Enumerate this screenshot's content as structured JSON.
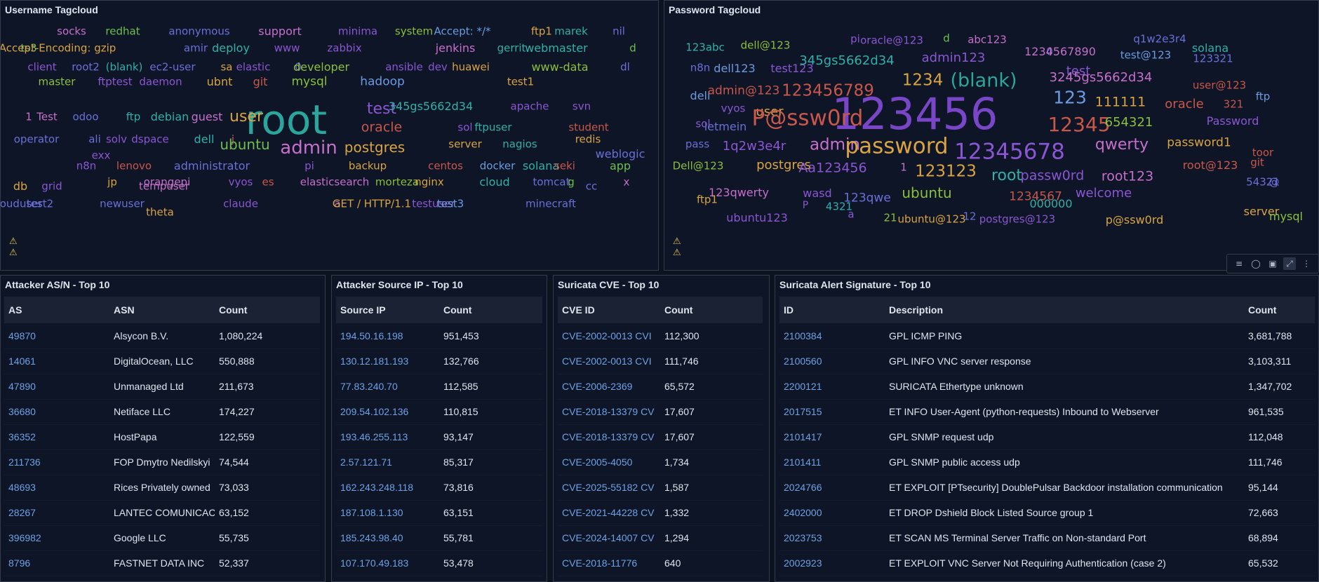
{
  "username_panel": {
    "title": "Username Tagcloud",
    "tags": [
      {
        "t": "socks",
        "c": "#c66fcb",
        "s": 15
      },
      {
        "t": "redhat",
        "c": "#6cbf4f",
        "s": 15
      },
      {
        "t": "anonymous",
        "c": "#6b6fd8",
        "s": 15
      },
      {
        "t": "support",
        "c": "#c66fcb",
        "s": 16
      },
      {
        "t": "minima",
        "c": "#8b56d3",
        "s": 15
      },
      {
        "t": "system",
        "c": "#8bbf3c",
        "s": 15
      },
      {
        "t": "Accept: */*",
        "c": "#6b9be0",
        "s": 15
      },
      {
        "t": "ftp1",
        "c": "#d9a441",
        "s": 15
      },
      {
        "t": "marek",
        "c": "#2fb0a8",
        "s": 15
      },
      {
        "t": "nil",
        "c": "#6b6fd8",
        "s": 15
      },
      {
        "t": "ts3",
        "c": "#6cbf4f",
        "s": 15
      },
      {
        "t": "Accept-Encoding: gzip",
        "c": "#d9a441",
        "s": 15
      },
      {
        "t": "amir",
        "c": "#6b6fd8",
        "s": 15
      },
      {
        "t": "deploy",
        "c": "#2fb0a8",
        "s": 16
      },
      {
        "t": "www",
        "c": "#8b56d3",
        "s": 15
      },
      {
        "t": "zabbix",
        "c": "#8b56d3",
        "s": 15
      },
      {
        "t": "jenkins",
        "c": "#c66fcb",
        "s": 16
      },
      {
        "t": "gerrit",
        "c": "#2fb0a8",
        "s": 15
      },
      {
        "t": "webmaster",
        "c": "#2fb0a8",
        "s": 16
      },
      {
        "t": "d",
        "c": "#6cbf4f",
        "s": 15
      },
      {
        "t": "client",
        "c": "#8b56d3",
        "s": 15
      },
      {
        "t": "root2",
        "c": "#6b6fd8",
        "s": 15
      },
      {
        "t": "(blank)",
        "c": "#2fb0a8",
        "s": 15
      },
      {
        "t": "ec2-user",
        "c": "#6b6fd8",
        "s": 15
      },
      {
        "t": "sa",
        "c": "#d9a441",
        "s": 15
      },
      {
        "t": "elastic",
        "c": "#8b56d3",
        "s": 15
      },
      {
        "t": "0",
        "c": "#6b6fd8",
        "s": 15
      },
      {
        "t": "developer",
        "c": "#8bbf3c",
        "s": 16
      },
      {
        "t": "ansible",
        "c": "#8b56d3",
        "s": 15
      },
      {
        "t": "dev",
        "c": "#8b56d3",
        "s": 15
      },
      {
        "t": "huawei",
        "c": "#d9a441",
        "s": 15
      },
      {
        "t": "www-data",
        "c": "#8bbf3c",
        "s": 16
      },
      {
        "t": "dl",
        "c": "#6b6fd8",
        "s": 15
      },
      {
        "t": "master",
        "c": "#8bbf3c",
        "s": 15
      },
      {
        "t": "ftptest",
        "c": "#8b56d3",
        "s": 15
      },
      {
        "t": "daemon",
        "c": "#8b56d3",
        "s": 15
      },
      {
        "t": "ubnt",
        "c": "#d9a441",
        "s": 16
      },
      {
        "t": "git",
        "c": "#c9574a",
        "s": 16
      },
      {
        "t": "mysql",
        "c": "#8bbf3c",
        "s": 17
      },
      {
        "t": "hadoop",
        "c": "#6b9be0",
        "s": 17
      },
      {
        "t": "test1",
        "c": "#d9a441",
        "s": 15
      },
      {
        "t": "root",
        "c": "#2ba69d",
        "s": 58
      },
      {
        "t": "test",
        "c": "#8b56d3",
        "s": 22
      },
      {
        "t": "345gs5662d34",
        "c": "#2fb0a8",
        "s": 16
      },
      {
        "t": "apache",
        "c": "#8b56d3",
        "s": 15
      },
      {
        "t": "svn",
        "c": "#8b56d3",
        "s": 15
      },
      {
        "t": "1",
        "c": "#c66fcb",
        "s": 15
      },
      {
        "t": "Test",
        "c": "#c66fcb",
        "s": 15
      },
      {
        "t": "odoo",
        "c": "#6b6fd8",
        "s": 15
      },
      {
        "t": "ftp",
        "c": "#2fb0a8",
        "s": 15
      },
      {
        "t": "debian",
        "c": "#2fb0a8",
        "s": 16
      },
      {
        "t": "guest",
        "c": "#c66fcb",
        "s": 16
      },
      {
        "t": "user",
        "c": "#d9a441",
        "s": 22
      },
      {
        "t": "oracle",
        "c": "#c9574a",
        "s": 19
      },
      {
        "t": "sol",
        "c": "#8b56d3",
        "s": 15
      },
      {
        "t": "ftpuser",
        "c": "#2fb0a8",
        "s": 15
      },
      {
        "t": "student",
        "c": "#c9574a",
        "s": 15
      },
      {
        "t": "operator",
        "c": "#6b6fd8",
        "s": 15
      },
      {
        "t": "ali",
        "c": "#6b6fd8",
        "s": 15
      },
      {
        "t": "solv",
        "c": "#8b56d3",
        "s": 15
      },
      {
        "t": "dspace",
        "c": "#8b56d3",
        "s": 15
      },
      {
        "t": "dell",
        "c": "#2fb0a8",
        "s": 16
      },
      {
        "t": "j",
        "c": "#c9574a",
        "s": 15
      },
      {
        "t": "ubuntu",
        "c": "#6cbf4f",
        "s": 20
      },
      {
        "t": "admin",
        "c": "#c66fcb",
        "s": 26
      },
      {
        "t": "postgres",
        "c": "#d9a441",
        "s": 20
      },
      {
        "t": "server",
        "c": "#d9a441",
        "s": 15
      },
      {
        "t": "nagios",
        "c": "#2fb0a8",
        "s": 15
      },
      {
        "t": "redis",
        "c": "#d9a441",
        "s": 15
      },
      {
        "t": "exx",
        "c": "#8b56d3",
        "s": 15
      },
      {
        "t": "weblogic",
        "c": "#6b6fd8",
        "s": 16
      },
      {
        "t": "n8n",
        "c": "#8b56d3",
        "s": 15
      },
      {
        "t": "lenovo",
        "c": "#c9574a",
        "s": 15
      },
      {
        "t": "administrator",
        "c": "#6b6fd8",
        "s": 16
      },
      {
        "t": "pi",
        "c": "#8b56d3",
        "s": 15
      },
      {
        "t": "backup",
        "c": "#d9a441",
        "s": 15
      },
      {
        "t": "centos",
        "c": "#c9574a",
        "s": 15
      },
      {
        "t": "docker",
        "c": "#6b9be0",
        "s": 15
      },
      {
        "t": "solana",
        "c": "#2fb0a8",
        "s": 16
      },
      {
        "t": "seki",
        "c": "#c9574a",
        "s": 15
      },
      {
        "t": "app",
        "c": "#6cbf4f",
        "s": 16
      },
      {
        "t": "jp",
        "c": "#d9a441",
        "s": 15
      },
      {
        "t": "orangepi",
        "c": "#c66fcb",
        "s": 15
      },
      {
        "t": "vyos",
        "c": "#8b56d3",
        "s": 15
      },
      {
        "t": "es",
        "c": "#c9574a",
        "s": 15
      },
      {
        "t": "elasticsearch",
        "c": "#c66fcb",
        "s": 15
      },
      {
        "t": "morteza",
        "c": "#8bbf3c",
        "s": 15
      },
      {
        "t": "nginx",
        "c": "#d9a441",
        "s": 15
      },
      {
        "t": "cloud",
        "c": "#2fb0a8",
        "s": 16
      },
      {
        "t": "tomcat",
        "c": "#6b6fd8",
        "s": 15
      },
      {
        "t": "g",
        "c": "#6cbf4f",
        "s": 15
      },
      {
        "t": "x",
        "c": "#c66fcb",
        "s": 15
      },
      {
        "t": "db",
        "c": "#d9a441",
        "s": 16
      },
      {
        "t": "grid",
        "c": "#8b56d3",
        "s": 15
      },
      {
        "t": "tempuser",
        "c": "#c66fcb",
        "s": 15
      },
      {
        "t": "cc",
        "c": "#6b6fd8",
        "s": 15
      },
      {
        "t": "clouduser",
        "c": "#6b6fd8",
        "s": 15
      },
      {
        "t": "test2",
        "c": "#6b6fd8",
        "s": 15
      },
      {
        "t": "newuser",
        "c": "#6b6fd8",
        "s": 15
      },
      {
        "t": "claude",
        "c": "#8b56d3",
        "s": 15
      },
      {
        "t": "a",
        "c": "#c66fcb",
        "s": 15
      },
      {
        "t": "testuser",
        "c": "#8b56d3",
        "s": 15
      },
      {
        "t": "GET / HTTP/1.1",
        "c": "#d9a441",
        "s": 15
      },
      {
        "t": "test3",
        "c": "#6b9be0",
        "s": 15
      },
      {
        "t": "minecraft",
        "c": "#6b6fd8",
        "s": 15
      },
      {
        "t": "theta",
        "c": "#d9a441",
        "s": 15
      }
    ]
  },
  "password_panel": {
    "title": "Password Tagcloud",
    "tags": [
      {
        "t": "123abc",
        "c": "#2fb0a8",
        "s": 15
      },
      {
        "t": "dell@123",
        "c": "#8bbf3c",
        "s": 15
      },
      {
        "t": "pi",
        "c": "#8b56d3",
        "s": 15
      },
      {
        "t": "oracle@123",
        "c": "#8b56d3",
        "s": 15
      },
      {
        "t": "d",
        "c": "#6cbf4f",
        "s": 15
      },
      {
        "t": "abc123",
        "c": "#c66fcb",
        "s": 15
      },
      {
        "t": "q1w2e3r4",
        "c": "#6b6fd8",
        "s": 15
      },
      {
        "t": "solana",
        "c": "#2fb0a8",
        "s": 16
      },
      {
        "t": "n8n",
        "c": "#6b6fd8",
        "s": 15
      },
      {
        "t": "dell123",
        "c": "#6b9be0",
        "s": 16
      },
      {
        "t": "test123",
        "c": "#8b56d3",
        "s": 16
      },
      {
        "t": "345gs5662d34",
        "c": "#2fb0a8",
        "s": 18
      },
      {
        "t": "admin123",
        "c": "#8b56d3",
        "s": 18
      },
      {
        "t": "0",
        "c": "#6b6fd8",
        "s": 15
      },
      {
        "t": "1234567890",
        "c": "#c66fcb",
        "s": 16
      },
      {
        "t": "test@123",
        "c": "#6b9be0",
        "s": 15
      },
      {
        "t": "123321",
        "c": "#6b6fd8",
        "s": 15
      },
      {
        "t": "1234",
        "c": "#d9a441",
        "s": 23
      },
      {
        "t": "(blank)",
        "c": "#2ba69d",
        "s": 27
      },
      {
        "t": "test",
        "c": "#8b56d3",
        "s": 18
      },
      {
        "t": "3245gs5662d34",
        "c": "#c66fcb",
        "s": 18
      },
      {
        "t": "user@123",
        "c": "#c9574a",
        "s": 15
      },
      {
        "t": "dell",
        "c": "#6b9be0",
        "s": 16
      },
      {
        "t": "admin@123",
        "c": "#c9574a",
        "s": 17
      },
      {
        "t": "123456789",
        "c": "#c9574a",
        "s": 23
      },
      {
        "t": "123456",
        "c": "#7a46c8",
        "s": 62
      },
      {
        "t": "123",
        "c": "#6b9be0",
        "s": 25
      },
      {
        "t": "111111",
        "c": "#d9a441",
        "s": 19
      },
      {
        "t": "oracle",
        "c": "#c9574a",
        "s": 18
      },
      {
        "t": "321",
        "c": "#c9574a",
        "s": 15
      },
      {
        "t": "ftp",
        "c": "#6b9be0",
        "s": 15
      },
      {
        "t": "vyos",
        "c": "#8b56d3",
        "s": 15
      },
      {
        "t": "user",
        "c": "#d9a441",
        "s": 18
      },
      {
        "t": "P@ssw0rd",
        "c": "#c9574a",
        "s": 31
      },
      {
        "t": "sol",
        "c": "#8b56d3",
        "s": 15
      },
      {
        "t": "letmein",
        "c": "#6b6fd8",
        "s": 16
      },
      {
        "t": "12345",
        "c": "#c9574a",
        "s": 28
      },
      {
        "t": "654321",
        "c": "#8bbf3c",
        "s": 18
      },
      {
        "t": "Password",
        "c": "#8b56d3",
        "s": 16
      },
      {
        "t": "pass",
        "c": "#6b6fd8",
        "s": 15
      },
      {
        "t": "1q2w3e4r",
        "c": "#8b56d3",
        "s": 18
      },
      {
        "t": "admin",
        "c": "#c66fcb",
        "s": 23
      },
      {
        "t": "password",
        "c": "#d9a441",
        "s": 31
      },
      {
        "t": "12345678",
        "c": "#8b56d3",
        "s": 31
      },
      {
        "t": "qwerty",
        "c": "#c66fcb",
        "s": 22
      },
      {
        "t": "password1",
        "c": "#d9a441",
        "s": 17
      },
      {
        "t": "toor",
        "c": "#c9574a",
        "s": 15
      },
      {
        "t": "Dell@123",
        "c": "#8bbf3c",
        "s": 15
      },
      {
        "t": "postgres",
        "c": "#d9a441",
        "s": 18
      },
      {
        "t": "Aa123456",
        "c": "#8b56d3",
        "s": 19
      },
      {
        "t": "1",
        "c": "#c66fcb",
        "s": 15
      },
      {
        "t": "123123",
        "c": "#d9a441",
        "s": 23
      },
      {
        "t": "root",
        "c": "#2fb0a8",
        "s": 22
      },
      {
        "t": "passw0rd",
        "c": "#8b56d3",
        "s": 19
      },
      {
        "t": "root123",
        "c": "#c66fcb",
        "s": 19
      },
      {
        "t": "root@123",
        "c": "#c9574a",
        "s": 16
      },
      {
        "t": "git",
        "c": "#c9574a",
        "s": 15
      },
      {
        "t": "54321",
        "c": "#6b6fd8",
        "s": 15
      },
      {
        "t": "@",
        "c": "#6b6fd8",
        "s": 15
      },
      {
        "t": "123qwerty",
        "c": "#c66fcb",
        "s": 16
      },
      {
        "t": "wasd",
        "c": "#8b56d3",
        "s": 16
      },
      {
        "t": "ubuntu",
        "c": "#8bbf3c",
        "s": 20
      },
      {
        "t": "1234567",
        "c": "#c9574a",
        "s": 17
      },
      {
        "t": "welcome",
        "c": "#8b56d3",
        "s": 18
      },
      {
        "t": "ftp1",
        "c": "#d9a441",
        "s": 15
      },
      {
        "t": "123qwe",
        "c": "#6b6fd8",
        "s": 17
      },
      {
        "t": "000000",
        "c": "#2fb0a8",
        "s": 16
      },
      {
        "t": "P",
        "c": "#8b56d3",
        "s": 14
      },
      {
        "t": "4321",
        "c": "#2fb0a8",
        "s": 15
      },
      {
        "t": "server",
        "c": "#d9a441",
        "s": 16
      },
      {
        "t": "mysql",
        "c": "#8bbf3c",
        "s": 16
      },
      {
        "t": "ubuntu123",
        "c": "#8b56d3",
        "s": 16
      },
      {
        "t": "a",
        "c": "#8b56d3",
        "s": 15
      },
      {
        "t": "21",
        "c": "#8bbf3c",
        "s": 15
      },
      {
        "t": "ubuntu@123",
        "c": "#d9a441",
        "s": 15
      },
      {
        "t": "12",
        "c": "#6b6fd8",
        "s": 15
      },
      {
        "t": "postgres@123",
        "c": "#8b56d3",
        "s": 15
      },
      {
        "t": "p@ssw0rd",
        "c": "#d9a441",
        "s": 16
      }
    ]
  },
  "toolbar": {
    "icons": [
      "filter-icon",
      "compass-icon",
      "inspect-icon",
      "expand-icon",
      "more-icon"
    ]
  },
  "asn_table": {
    "title": "Attacker AS/N - Top 10",
    "headers": [
      "AS",
      "ASN",
      "Count"
    ],
    "rows": [
      [
        "49870",
        "Alsycon B.V.",
        "1,080,224"
      ],
      [
        "14061",
        "DigitalOcean, LLC",
        "550,888"
      ],
      [
        "47890",
        "Unmanaged Ltd",
        "211,673"
      ],
      [
        "36680",
        "Netiface LLC",
        "174,227"
      ],
      [
        "36352",
        "HostPapa",
        "122,559"
      ],
      [
        "211736",
        "FOP Dmytro Nedilskyi",
        "74,544"
      ],
      [
        "48693",
        "Rices Privately owned",
        "73,033"
      ],
      [
        "28267",
        "LANTEC COMUNICAC",
        "63,152"
      ],
      [
        "396982",
        "Google LLC",
        "55,735"
      ],
      [
        "8796",
        "FASTNET DATA INC",
        "52,337"
      ]
    ]
  },
  "ip_table": {
    "title": "Attacker Source IP - Top 10",
    "headers": [
      "Source IP",
      "Count"
    ],
    "rows": [
      [
        "194.50.16.198",
        "951,453"
      ],
      [
        "130.12.181.193",
        "132,766"
      ],
      [
        "77.83.240.70",
        "112,585"
      ],
      [
        "209.54.102.136",
        "110,815"
      ],
      [
        "193.46.255.113",
        "93,147"
      ],
      [
        "2.57.121.71",
        "85,317"
      ],
      [
        "162.243.248.118",
        "73,816"
      ],
      [
        "187.108.1.130",
        "63,151"
      ],
      [
        "185.243.98.40",
        "55,781"
      ],
      [
        "107.170.49.183",
        "53,478"
      ]
    ]
  },
  "cve_table": {
    "title": "Suricata CVE - Top 10",
    "headers": [
      "CVE ID",
      "Count"
    ],
    "rows": [
      [
        "CVE-2002-0013 CVI",
        "112,300"
      ],
      [
        "CVE-2002-0013 CVI",
        "111,746"
      ],
      [
        "CVE-2006-2369",
        "65,572"
      ],
      [
        "CVE-2018-13379 CV",
        "17,607"
      ],
      [
        "CVE-2018-13379 CV",
        "17,607"
      ],
      [
        "CVE-2005-4050",
        "1,734"
      ],
      [
        "CVE-2025-55182 CV",
        "1,587"
      ],
      [
        "CVE-2021-44228 CV",
        "1,332"
      ],
      [
        "CVE-2024-14007 CV",
        "1,294"
      ],
      [
        "CVE-2018-11776",
        "640"
      ]
    ]
  },
  "sig_table": {
    "title": "Suricata Alert Signature - Top 10",
    "headers": [
      "ID",
      "Description",
      "Count"
    ],
    "rows": [
      [
        "2100384",
        "GPL ICMP PING",
        "3,681,788"
      ],
      [
        "2100560",
        "GPL INFO VNC server response",
        "3,103,311"
      ],
      [
        "2200121",
        "SURICATA Ethertype unknown",
        "1,347,702"
      ],
      [
        "2017515",
        "ET INFO User-Agent (python-requests) Inbound to Webserver",
        "961,535"
      ],
      [
        "2101417",
        "GPL SNMP request udp",
        "112,048"
      ],
      [
        "2101411",
        "GPL SNMP public access udp",
        "111,746"
      ],
      [
        "2024766",
        "ET EXPLOIT [PTsecurity] DoublePulsar Backdoor installation communication",
        "95,144"
      ],
      [
        "2402000",
        "ET DROP Dshield Block Listed Source group 1",
        "72,663"
      ],
      [
        "2023753",
        "ET SCAN MS Terminal Server Traffic on Non-standard Port",
        "68,894"
      ],
      [
        "2002923",
        "ET EXPLOIT VNC Server Not Requiring Authentication (case 2)",
        "65,532"
      ]
    ]
  }
}
